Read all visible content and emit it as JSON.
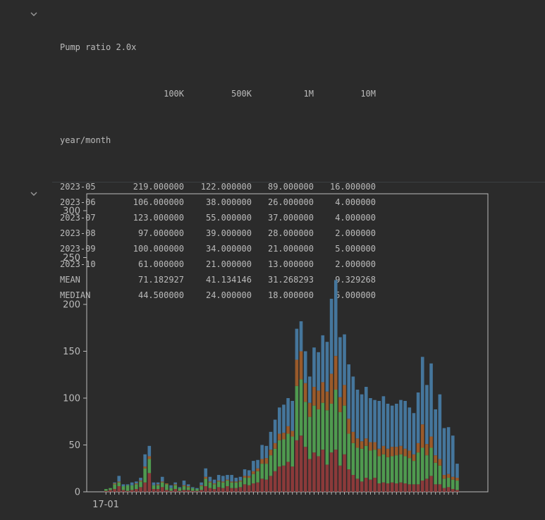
{
  "cell1": {
    "title": "Pump ratio 2.0x",
    "columns": [
      "100K",
      "500K",
      "1M",
      "10M"
    ],
    "index_name": "year/month",
    "rows": [
      {
        "label": "2023-05",
        "values": [
          "219.000000",
          "122.000000",
          "89.000000",
          "16.000000"
        ]
      },
      {
        "label": "2023-06",
        "values": [
          "106.000000",
          "38.000000",
          "26.000000",
          "4.000000"
        ]
      },
      {
        "label": "2023-07",
        "values": [
          "123.000000",
          "55.000000",
          "37.000000",
          "4.000000"
        ]
      },
      {
        "label": "2023-08",
        "values": [
          "97.000000",
          "39.000000",
          "28.000000",
          "2.000000"
        ]
      },
      {
        "label": "2023-09",
        "values": [
          "100.000000",
          "34.000000",
          "21.000000",
          "5.000000"
        ]
      },
      {
        "label": "2023-10",
        "values": [
          "61.000000",
          "21.000000",
          "13.000000",
          "2.000000"
        ]
      },
      {
        "label": "MEAN",
        "values": [
          "71.182927",
          "41.134146",
          "31.268293",
          "9.329268"
        ]
      },
      {
        "label": "MEDIAN",
        "values": [
          "44.500000",
          "24.000000",
          "18.000000",
          "5.000000"
        ]
      }
    ]
  },
  "chart_data": {
    "type": "bar",
    "stacked": true,
    "title": "",
    "xlabel": "",
    "ylabel": "",
    "ylim": [
      0,
      300
    ],
    "yticks": [
      0,
      50,
      100,
      150,
      200,
      250,
      300
    ],
    "xtick_label": "17-01",
    "grid": false,
    "colors": {
      "series_red": "#8b3a3a",
      "series_green": "#4f9a4f",
      "series_orange": "#9a5a2a",
      "series_blue": "#45769c",
      "axes": "#bbbbbb",
      "background": "#2b2b2b"
    },
    "series": [
      {
        "values": [
          1,
          2,
          3,
          6,
          2,
          1,
          2,
          3,
          5,
          10,
          20,
          3,
          3,
          5,
          2,
          1,
          3,
          1,
          2,
          2,
          1,
          1,
          2,
          6,
          4,
          3,
          5,
          4,
          6,
          4,
          4,
          5,
          8,
          7,
          9,
          10,
          14,
          13,
          17,
          22,
          27,
          28,
          32,
          27,
          55,
          60,
          48,
          35,
          42,
          38,
          45,
          29,
          42,
          45,
          28,
          40,
          24,
          18,
          14,
          11,
          15,
          13,
          15,
          9,
          10,
          9,
          10,
          9,
          10,
          9,
          8,
          8,
          8,
          12,
          14,
          17,
          8,
          8,
          4,
          5,
          3,
          2
        ]
      },
      {
        "values": [
          2,
          2,
          5,
          4,
          4,
          6,
          5,
          5,
          6,
          15,
          15,
          4,
          4,
          5,
          6,
          3,
          4,
          3,
          4,
          3,
          3,
          2,
          4,
          8,
          6,
          5,
          6,
          6,
          6,
          6,
          6,
          6,
          7,
          8,
          10,
          12,
          16,
          17,
          22,
          24,
          28,
          28,
          30,
          32,
          58,
          60,
          48,
          45,
          50,
          50,
          50,
          58,
          52,
          64,
          57,
          52,
          38,
          34,
          33,
          35,
          34,
          31,
          30,
          29,
          30,
          28,
          28,
          30,
          30,
          29,
          28,
          25,
          34,
          35,
          25,
          30,
          23,
          20,
          10,
          10,
          10,
          10
        ]
      },
      {
        "values": [
          0,
          0,
          1,
          1,
          0,
          0,
          0,
          1,
          1,
          2,
          3,
          0,
          1,
          1,
          1,
          0,
          1,
          0,
          1,
          1,
          0,
          0,
          1,
          2,
          1,
          1,
          1,
          1,
          1,
          1,
          1,
          1,
          2,
          2,
          3,
          3,
          5,
          6,
          6,
          6,
          7,
          7,
          8,
          6,
          28,
          30,
          20,
          15,
          20,
          20,
          22,
          20,
          32,
          36,
          16,
          22,
          16,
          12,
          10,
          8,
          8,
          9,
          8,
          8,
          9,
          9,
          10,
          9,
          9,
          8,
          8,
          7,
          10,
          25,
          12,
          12,
          8,
          7,
          4,
          4,
          3,
          3
        ]
      },
      {
        "values": [
          0,
          0,
          1,
          6,
          2,
          1,
          3,
          2,
          3,
          13,
          11,
          3,
          2,
          5,
          0,
          3,
          2,
          1,
          5,
          2,
          1,
          1,
          3,
          9,
          5,
          4,
          6,
          6,
          5,
          7,
          4,
          4,
          7,
          6,
          11,
          9,
          15,
          13,
          19,
          25,
          28,
          30,
          30,
          32,
          33,
          32,
          34,
          28,
          42,
          41,
          50,
          53,
          80,
          81,
          64,
          54,
          58,
          59,
          52,
          50,
          55,
          47,
          45,
          51,
          53,
          48,
          44,
          46,
          49,
          51,
          46,
          44,
          54,
          72,
          63,
          78,
          49,
          69,
          50,
          50,
          44,
          15
        ]
      }
    ]
  }
}
